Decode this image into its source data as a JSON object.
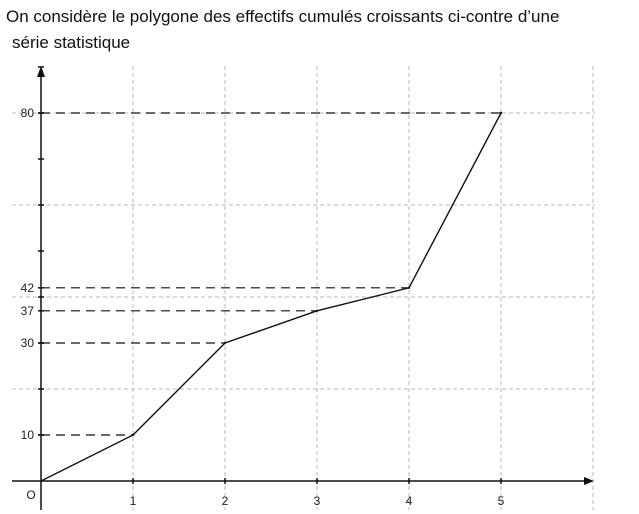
{
  "intro_text": {
    "line1": "On considère le polygone des effectifs cumulés croissants ci-contre d’une",
    "line2": "série statistique"
  },
  "chart_data": {
    "type": "line",
    "title": "",
    "xlabel": "",
    "ylabel": "",
    "origin_label": "O",
    "xlim": [
      0,
      6
    ],
    "ylim": [
      0,
      90
    ],
    "x_ticks": [
      1,
      2,
      3,
      4,
      5
    ],
    "y_ticks": [
      10,
      30,
      37,
      42,
      80
    ],
    "grid": true,
    "grid_x_step": 1,
    "grid_y_step": 20,
    "series": [
      {
        "x": [
          0,
          1,
          2,
          3,
          4,
          5
        ],
        "y": [
          0,
          10,
          30,
          37,
          42,
          80
        ]
      }
    ],
    "dashed_guides_to_y_axis": true,
    "colors": {
      "line": "#111111",
      "guide": "#111111",
      "grid": "#bbbbbb",
      "axis": "#111111"
    }
  }
}
